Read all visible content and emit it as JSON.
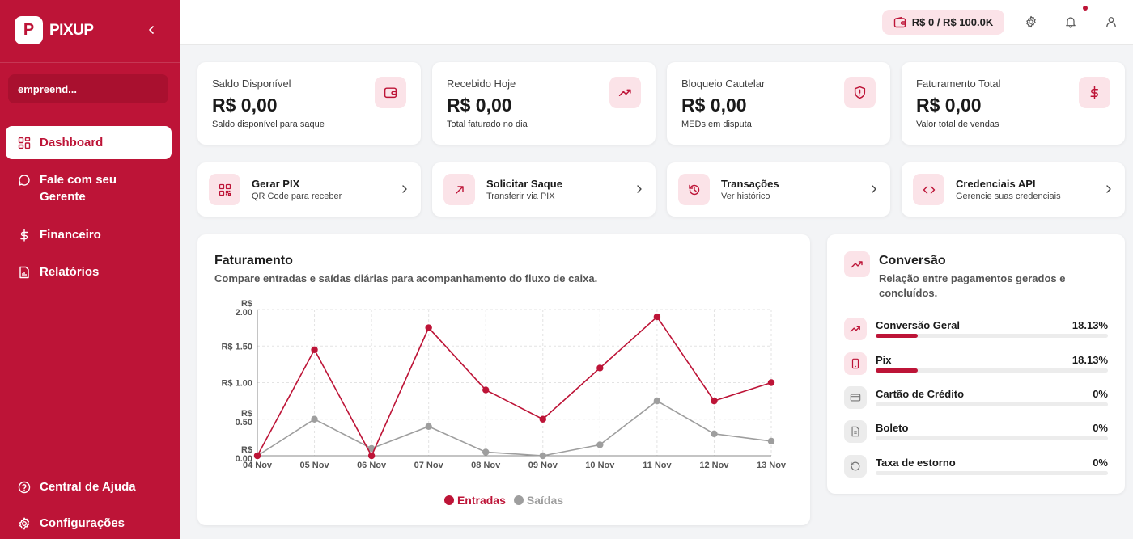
{
  "brand": {
    "logo_letter": "P",
    "name": "PIXUP"
  },
  "sidebar": {
    "account": "empreend...",
    "items": [
      {
        "label": "Dashboard",
        "icon": "dashboard-icon",
        "active": true
      },
      {
        "label": "Fale com seu Gerente",
        "icon": "chat-icon",
        "active": false
      },
      {
        "label": "Financeiro",
        "icon": "dollar-icon",
        "active": false
      },
      {
        "label": "Relatórios",
        "icon": "report-icon",
        "active": false
      }
    ],
    "bottom": [
      {
        "label": "Central de Ajuda",
        "icon": "help-icon"
      },
      {
        "label": "Configurações",
        "icon": "settings-icon"
      }
    ]
  },
  "topbar": {
    "limit": "R$ 0 / R$ 100.0K"
  },
  "stats": [
    {
      "title": "Saldo Disponível",
      "value": "R$ 0,00",
      "sub": "Saldo disponível para saque",
      "icon": "wallet-icon"
    },
    {
      "title": "Recebido Hoje",
      "value": "R$ 0,00",
      "sub": "Total faturado no dia",
      "icon": "trending-up-icon"
    },
    {
      "title": "Bloqueio Cautelar",
      "value": "R$ 0,00",
      "sub": "MEDs em disputa",
      "icon": "shield-alert-icon"
    },
    {
      "title": "Faturamento Total",
      "value": "R$ 0,00",
      "sub": "Valor total de vendas",
      "icon": "dollar-icon"
    }
  ],
  "actions": [
    {
      "title": "Gerar PIX",
      "sub": "QR Code para receber",
      "icon": "qr-code-icon"
    },
    {
      "title": "Solicitar Saque",
      "sub": "Transferir via PIX",
      "icon": "arrow-up-right-icon"
    },
    {
      "title": "Transações",
      "sub": "Ver histórico",
      "icon": "history-icon"
    },
    {
      "title": "Credenciais API",
      "sub": "Gerencie suas credenciais",
      "icon": "code-icon"
    }
  ],
  "revenue": {
    "title": "Faturamento",
    "subtitle": "Compare entradas e saídas diárias para acompanhamento do fluxo de caixa."
  },
  "chart_data": {
    "type": "line",
    "categories": [
      "04 Nov",
      "05 Nov",
      "06 Nov",
      "07 Nov",
      "08 Nov",
      "09 Nov",
      "10 Nov",
      "11 Nov",
      "12 Nov",
      "13 Nov"
    ],
    "series": [
      {
        "name": "Entradas",
        "color": "#bd1437",
        "values": [
          0.0,
          1.45,
          0.0,
          1.75,
          0.9,
          0.5,
          1.2,
          1.9,
          0.75,
          1.0
        ]
      },
      {
        "name": "Saídas",
        "color": "#9e9e9e",
        "values": [
          0.0,
          0.5,
          0.1,
          0.4,
          0.05,
          0.0,
          0.15,
          0.75,
          0.3,
          0.2
        ]
      }
    ],
    "yticks": [
      {
        "value": 0,
        "line1": "R$",
        "line2": "0.00"
      },
      {
        "value": 0.5,
        "line1": "R$",
        "line2": "0.50"
      },
      {
        "value": 1.0,
        "line1": "R$ 1.00",
        "line2": ""
      },
      {
        "value": 1.5,
        "line1": "R$ 1.50",
        "line2": ""
      },
      {
        "value": 2.0,
        "line1": "R$",
        "line2": "2.00"
      }
    ],
    "ylim": [
      0,
      2
    ],
    "grid": true,
    "legend": "bottom-center"
  },
  "conversion": {
    "title": "Conversão",
    "subtitle": "Relação entre pagamentos gerados e concluídos.",
    "rows": [
      {
        "label": "Conversão Geral",
        "value": "18.13%",
        "pct": 18.13,
        "icon": "trending-up-icon",
        "style": "red"
      },
      {
        "label": "Pix",
        "value": "18.13%",
        "pct": 18.13,
        "icon": "smartphone-icon",
        "style": "red"
      },
      {
        "label": "Cartão de Crédito",
        "value": "0%",
        "pct": 0,
        "icon": "credit-card-icon",
        "style": "gray"
      },
      {
        "label": "Boleto",
        "value": "0%",
        "pct": 0,
        "icon": "file-icon",
        "style": "gray"
      },
      {
        "label": "Taxa de estorno",
        "value": "0%",
        "pct": 0,
        "icon": "refund-icon",
        "style": "gray"
      }
    ]
  }
}
